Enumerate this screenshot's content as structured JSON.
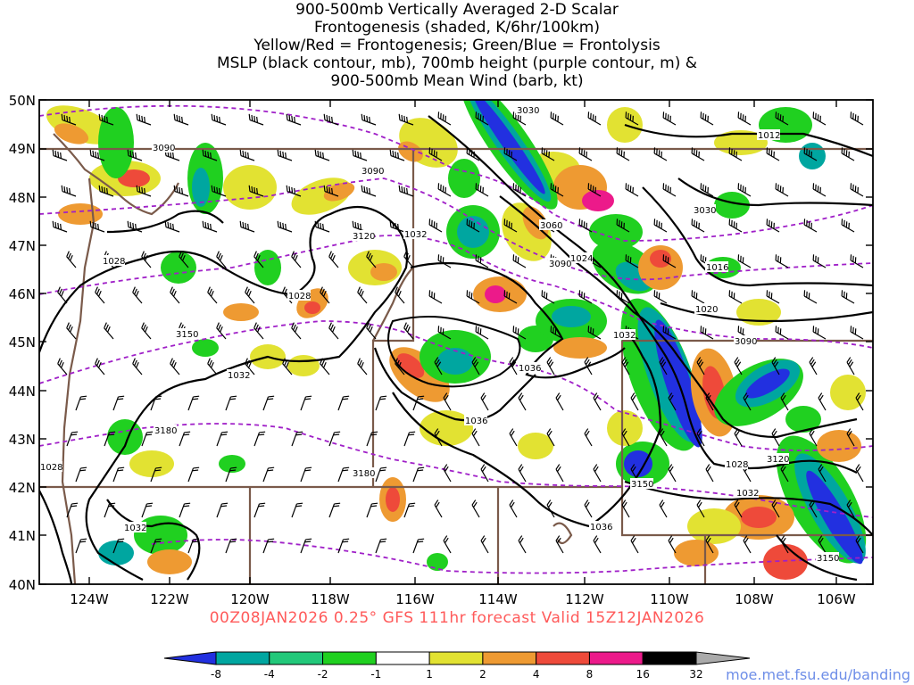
{
  "title_lines": [
    "900-500mb Vertically Averaged 2-D Scalar",
    "Frontogenesis (shaded, K/6hr/100km)",
    "Yellow/Red = Frontogenesis;  Green/Blue = Frontolysis",
    "MSLP (black contour, mb), 700mb height (purple contour, m) &",
    "900-500mb Mean Wind (barb, kt)"
  ],
  "footer": "00Z08JAN2026 0.25° GFS 111hr forecast Valid 15Z12JAN2026",
  "credit": "moe.met.fsu.edu/banding",
  "lon_labels": [
    "124W",
    "122W",
    "120W",
    "118W",
    "116W",
    "114W",
    "112W",
    "110W",
    "108W",
    "106W"
  ],
  "lat_labels": [
    "50N",
    "49N",
    "48N",
    "47N",
    "46N",
    "45N",
    "44N",
    "43N",
    "42N",
    "41N",
    "40N"
  ],
  "mslp_labels": [
    "1028",
    "1028",
    "1032",
    "1032",
    "1036",
    "1036",
    "1036",
    "1032",
    "1024",
    "1020",
    "1016",
    "1012",
    "1028",
    "1032",
    "1028",
    "1032"
  ],
  "height_labels": [
    "3030",
    "3060",
    "3090",
    "3090",
    "3090",
    "3090",
    "3120",
    "3120",
    "3150",
    "3150",
    "3150",
    "3180",
    "3180",
    "3030"
  ],
  "colorbar": {
    "ticks": [
      "-8",
      "-4",
      "-2",
      "-1",
      "1",
      "2",
      "4",
      "8",
      "16",
      "32"
    ],
    "colors": [
      "#2230e0",
      "#00a6a0",
      "#22c87a",
      "#20d020",
      "#ffffff",
      "#e2e232",
      "#ee9a32",
      "#ee4a3a",
      "#ec1a8a",
      "#000000",
      "#aaaaaa"
    ]
  },
  "colors": {
    "frontolysis_strong": "#2230e0",
    "frontolysis_teal": "#00a6a0",
    "frontolysis_green": "#20d020",
    "frontogenesis_yellow": "#e2e232",
    "frontogenesis_orange": "#ee9a32",
    "frontogenesis_red": "#ee4a3a",
    "frontogenesis_magenta": "#ec1a8a",
    "mslp_contour": "#000000",
    "height_contour": "#a020c8",
    "borders": "#7a5a4a",
    "footer_text": "#ff5a5a"
  }
}
